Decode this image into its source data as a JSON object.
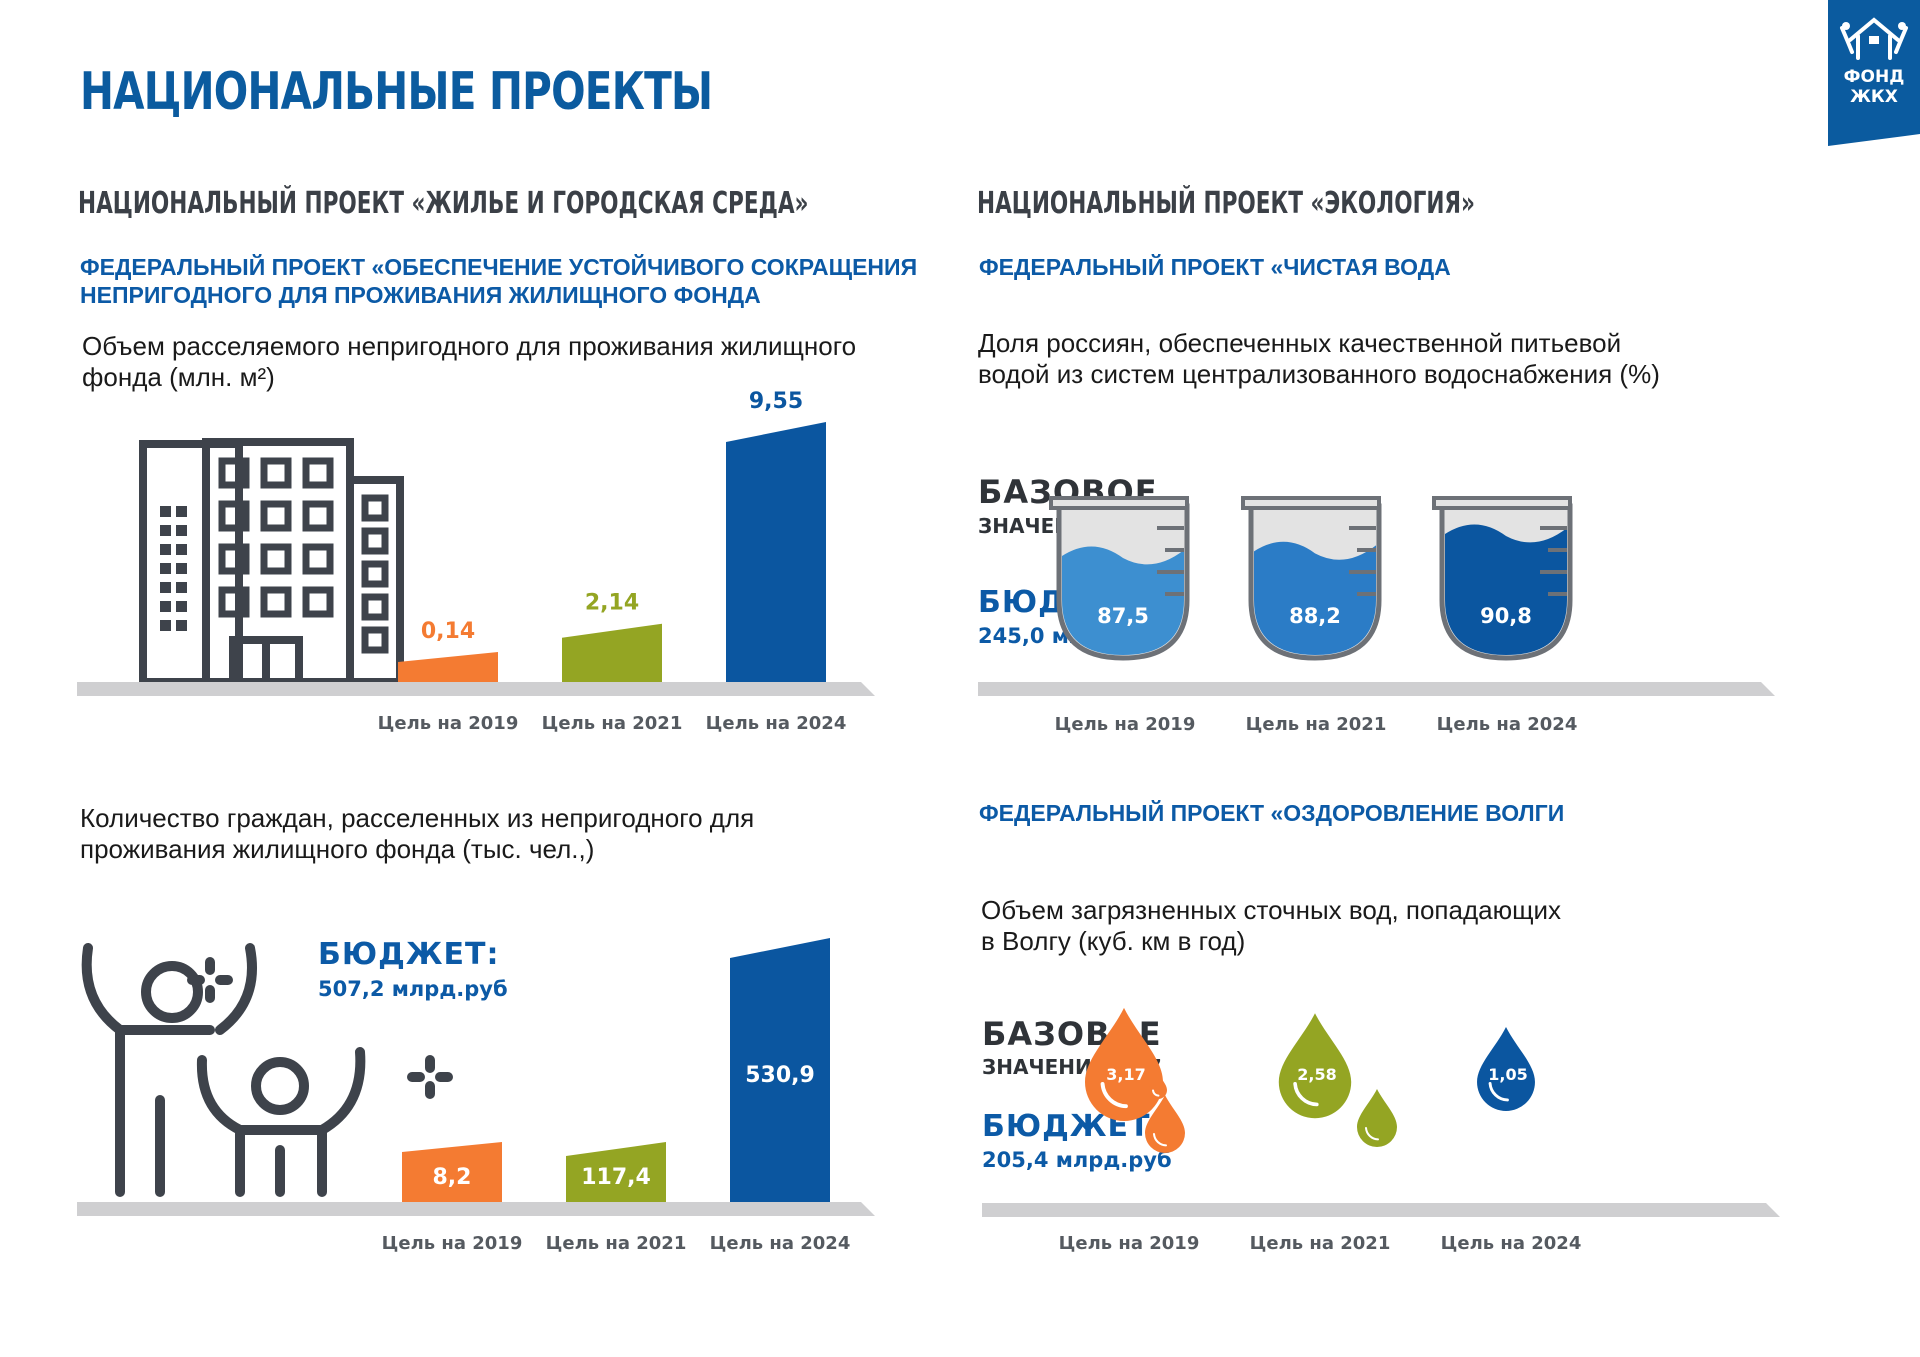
{
  "header": {
    "title": "НАЦИОНАЛЬНЫЕ ПРОЕКТЫ",
    "logo_line1": "ФОНД",
    "logo_line2": "ЖКХ"
  },
  "left": {
    "national_project": "НАЦИОНАЛЬНЫЙ ПРОЕКТ «ЖИЛЬЕ И ГОРОДСКАЯ СРЕДА»",
    "federal_project_line1": "ФЕДЕРАЛЬНЫЙ ПРОЕКТ «ОБЕСПЕЧЕНИЕ УСТОЙЧИВОГО СОКРАЩЕНИЯ",
    "federal_project_line2": "НЕПРИГОДНОГО ДЛЯ ПРОЖИВАНИЯ ЖИЛИЩНОГО ФОНДА",
    "chart1_desc_line1": "Объем расселяемого непригодного для проживания жилищного",
    "chart1_desc_line2": "фонда (млн. м²)",
    "chart2_desc_line1": "Количество  граждан, расселенных из непригодного для",
    "chart2_desc_line2": "проживания  жилищного фонда (тыс. чел.,)",
    "budget_label": "БЮДЖЕТ:",
    "budget_value": "507,2 млрд.руб"
  },
  "right": {
    "national_project": "НАЦИОНАЛЬНЫЙ ПРОЕКТ «ЭКОЛОГИЯ»",
    "federal_project_water": "ФЕДЕРАЛЬНЫЙ ПРОЕКТ «ЧИСТАЯ ВОДА",
    "chart3_desc_line1": "Доля россиян, обеспеченных качественной питьевой",
    "chart3_desc_line2": "водой из систем централизованного водоснабжения (%)",
    "water_base_label": "БАЗОВОЕ",
    "water_base_value": "ЗНАЧЕНИЕ 87,5",
    "water_budget_label": "БЮДЖЕТ:",
    "water_budget_value": "245,0 млрд.руб",
    "federal_project_volga": "ФЕДЕРАЛЬНЫЙ ПРОЕКТ «ОЗДОРОВЛЕНИЕ ВОЛГИ",
    "chart4_desc_line1": "Объем загрязненных сточных вод, попадающих",
    "chart4_desc_line2": "в Волгу (куб. км в год)",
    "volga_base_label": "БАЗОВОЕ",
    "volga_base_value": "ЗНАЧЕНИЕ 3,17",
    "volga_budget_label": "БЮДЖЕТ:",
    "volga_budget_value": "205,4 млрд.руб"
  },
  "colors": {
    "orange": "#f47b32",
    "green": "#94a523",
    "blue": "#0b56a0",
    "title_blue": "#0b5b9f",
    "icon_gray": "#3e434b",
    "floor_gray": "#cfcfd1"
  },
  "chart_data": [
    {
      "type": "bar",
      "categories": [
        "Цель на 2019",
        "Цель на 2021",
        "Цель на 2024"
      ],
      "values": [
        0.14,
        2.14,
        9.55
      ],
      "value_labels": [
        "0,14",
        "2,14",
        "9,55"
      ],
      "colors": [
        "#f47b32",
        "#94a523",
        "#0b56a0"
      ]
    },
    {
      "type": "bar",
      "categories": [
        "Цель на 2019",
        "Цель на 2021",
        "Цель на 2024"
      ],
      "values": [
        8.2,
        117.4,
        530.9
      ],
      "value_labels": [
        "8,2",
        "117,4",
        "530,9"
      ],
      "colors": [
        "#f47b32",
        "#94a523",
        "#0b56a0"
      ]
    },
    {
      "type": "bar",
      "categories": [
        "Цель на 2019",
        "Цель на 2021",
        "Цель на 2024"
      ],
      "values": [
        87.5,
        88.2,
        90.8
      ],
      "value_labels": [
        "87,5",
        "88,2",
        "90,8"
      ],
      "colors": [
        "#3d8fd0",
        "#2b7cc6",
        "#0b56a0"
      ],
      "icon": "beaker-icon"
    },
    {
      "type": "bar",
      "categories": [
        "Цель на 2019",
        "Цель на 2021",
        "Цель на 2024"
      ],
      "values": [
        3.17,
        2.58,
        1.05
      ],
      "value_labels": [
        "3,17",
        "2,58",
        "1,05"
      ],
      "colors": [
        "#f47b32",
        "#94a523",
        "#0b56a0"
      ],
      "icon": "water-drop-icon"
    }
  ]
}
